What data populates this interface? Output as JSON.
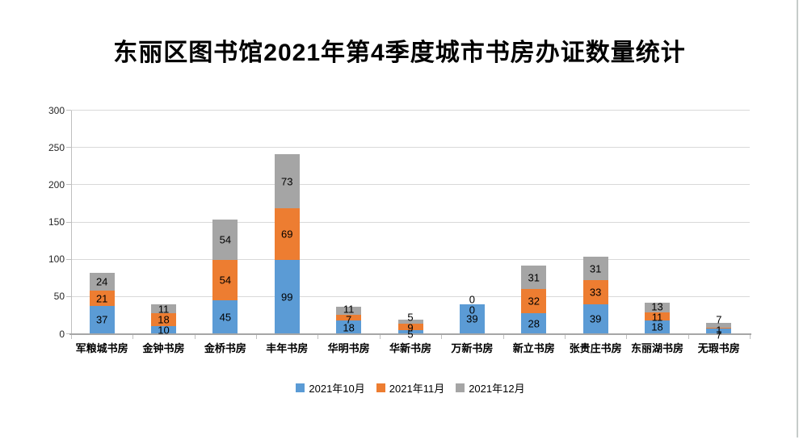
{
  "window": {
    "right_border_color": "#c6ccca"
  },
  "chart_data": {
    "type": "bar",
    "variant": "stacked",
    "title": "东丽区图书馆2021年第4季度城市书房办证数量统计",
    "categories": [
      "军粮城书房",
      "金钟书房",
      "金桥书房",
      "丰年书房",
      "华明书房",
      "华新书房",
      "万新书房",
      "新立书房",
      "张贵庄书房",
      "东丽湖书房",
      "无瑕书房"
    ],
    "series": [
      {
        "name": "2021年10月",
        "color": "#5B9BD5",
        "values": [
          37,
          10,
          45,
          99,
          18,
          5,
          39,
          28,
          39,
          18,
          7
        ]
      },
      {
        "name": "2021年11月",
        "color": "#ED7D31",
        "values": [
          21,
          18,
          54,
          69,
          7,
          9,
          0,
          32,
          33,
          11,
          1
        ]
      },
      {
        "name": "2021年12月",
        "color": "#A5A5A5",
        "values": [
          24,
          11,
          54,
          73,
          11,
          5,
          0,
          31,
          31,
          13,
          7
        ]
      }
    ],
    "y_axis": {
      "min": 0,
      "max": 300,
      "step": 50,
      "tick_labels": [
        "0",
        "50",
        "100",
        "150",
        "200",
        "250",
        "300"
      ]
    },
    "x_axis_label": "",
    "y_axis_label": "",
    "grid": true,
    "data_labels_shown": true,
    "legend_position": "bottom",
    "grid_color": "#d9d9d9",
    "axis_color": "#bfbfbf",
    "baseline_color": "#a6a6a6",
    "label_color": "#000000"
  }
}
